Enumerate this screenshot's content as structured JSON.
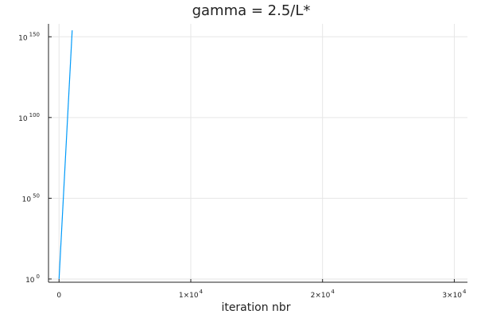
{
  "chart_data": {
    "type": "line",
    "title": "gamma = 2.5/L*",
    "xlabel": "iteration nbr",
    "ylabel": "",
    "x_scale": "linear",
    "y_scale": "log10",
    "xlim": [
      -800,
      31000
    ],
    "ylim_exponent": [
      -2,
      158
    ],
    "x_ticks": [
      {
        "value": 0,
        "base": "0",
        "exp": ""
      },
      {
        "value": 10000,
        "base": "1×10",
        "exp": "4"
      },
      {
        "value": 20000,
        "base": "2×10",
        "exp": "4"
      },
      {
        "value": 30000,
        "base": "3×10",
        "exp": "4"
      }
    ],
    "y_ticks": [
      {
        "exponent": 0,
        "base": "10",
        "exp": "0"
      },
      {
        "exponent": 50,
        "base": "10",
        "exp": "50"
      },
      {
        "exponent": 100,
        "base": "10",
        "exp": "100"
      },
      {
        "exponent": 150,
        "base": "10",
        "exp": "150"
      }
    ],
    "grid": true,
    "legend": "none",
    "series": [
      {
        "color": "#009af9",
        "x": [
          0,
          1000
        ],
        "y_exponent": [
          0,
          154
        ]
      }
    ]
  }
}
